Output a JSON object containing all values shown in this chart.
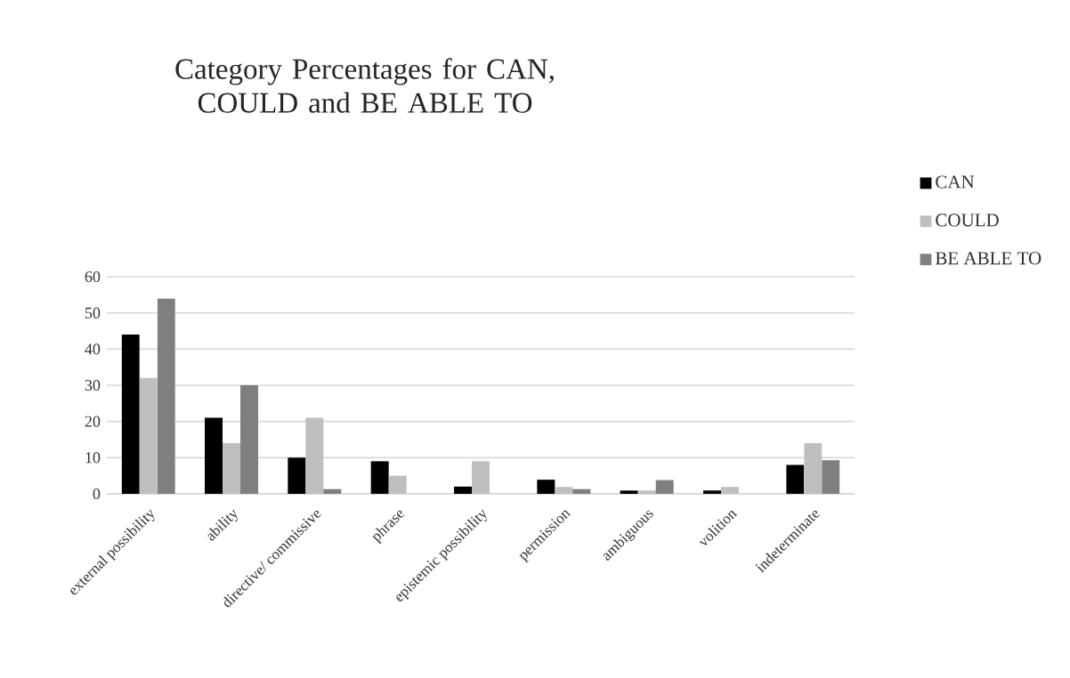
{
  "chart_data": {
    "type": "bar",
    "title": "Category Percentages for CAN, COULD and BE ABLE TO",
    "categories": [
      "external possibility",
      "ability",
      "directive/ commissive",
      "phrase",
      "epistemic possibility",
      "permission",
      "ambiguous",
      "volition",
      "indeterminate"
    ],
    "series": [
      {
        "name": "CAN",
        "color": "#000000",
        "values": [
          44,
          21,
          10,
          9,
          2,
          3.9,
          0.9,
          0.9,
          8
        ]
      },
      {
        "name": "COULD",
        "color": "#bfbfbf",
        "values": [
          32,
          14,
          21,
          5,
          9,
          1.9,
          0.9,
          1.9,
          14
        ]
      },
      {
        "name": "BE ABLE TO",
        "color": "#7f7f7f",
        "values": [
          54,
          30,
          1.3,
          null,
          null,
          1.3,
          3.8,
          null,
          9.3
        ]
      }
    ],
    "ylim": [
      0,
      60
    ],
    "yticks": [
      0,
      10,
      20,
      30,
      40,
      50,
      60
    ],
    "grid": "y",
    "legend": "top right"
  }
}
